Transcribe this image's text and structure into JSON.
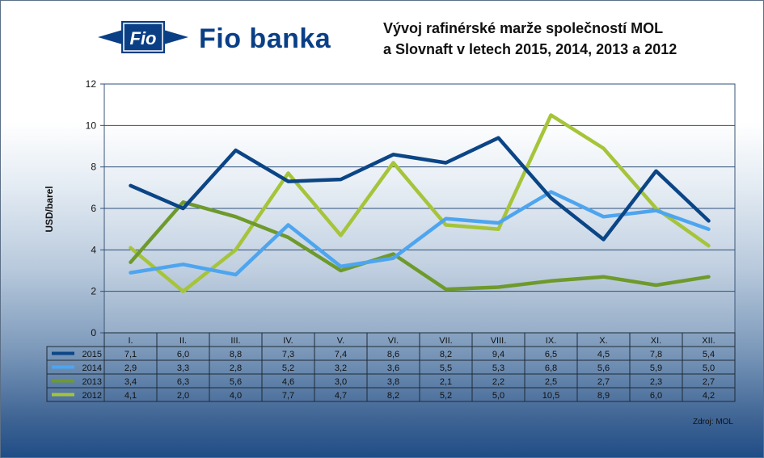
{
  "brand": {
    "logo_text": "Fio",
    "name": "Fio banka",
    "color": "#0a3f86"
  },
  "title_lines": [
    "Vývoj rafinérské marže společností MOL",
    "a Slovnaft v letech 2015, 2014, 2013 a 2012"
  ],
  "source": "Zdroj: MOL",
  "chart_data": {
    "type": "line",
    "title": "Vývoj rafinérské marže společností MOL a Slovnaft v letech 2015, 2014, 2013 a 2012",
    "xlabel": "",
    "ylabel": "USD/barel",
    "ylim": [
      0,
      12
    ],
    "yticks": [
      0,
      2,
      4,
      6,
      8,
      10,
      12
    ],
    "grid": true,
    "legend": "data-table",
    "categories": [
      "I.",
      "II.",
      "III.",
      "IV.",
      "V.",
      "VI.",
      "VII.",
      "VIII.",
      "IX.",
      "X.",
      "XI.",
      "XII."
    ],
    "series": [
      {
        "name": "2015",
        "color": "#0b4586",
        "values": [
          7.1,
          6.0,
          8.8,
          7.3,
          7.4,
          8.6,
          8.2,
          9.4,
          6.5,
          4.5,
          7.8,
          5.4
        ],
        "labels": [
          "7,1",
          "6,0",
          "8,8",
          "7,3",
          "7,4",
          "8,6",
          "8,2",
          "9,4",
          "6,5",
          "4,5",
          "7,8",
          "5,4"
        ]
      },
      {
        "name": "2014",
        "color": "#4ea5ef",
        "values": [
          2.9,
          3.3,
          2.8,
          5.2,
          3.2,
          3.6,
          5.5,
          5.3,
          6.8,
          5.6,
          5.9,
          5.0
        ],
        "labels": [
          "2,9",
          "3,3",
          "2,8",
          "5,2",
          "3,2",
          "3,6",
          "5,5",
          "5,3",
          "6,8",
          "5,6",
          "5,9",
          "5,0"
        ]
      },
      {
        "name": "2013",
        "color": "#6e9a2c",
        "values": [
          3.4,
          6.3,
          5.6,
          4.6,
          3.0,
          3.8,
          2.1,
          2.2,
          2.5,
          2.7,
          2.3,
          2.7
        ],
        "labels": [
          "3,4",
          "6,3",
          "5,6",
          "4,6",
          "3,0",
          "3,8",
          "2,1",
          "2,2",
          "2,5",
          "2,7",
          "2,3",
          "2,7"
        ]
      },
      {
        "name": "2012",
        "color": "#a6c43a",
        "values": [
          4.1,
          2.0,
          4.0,
          7.7,
          4.7,
          8.2,
          5.2,
          5.0,
          10.5,
          8.9,
          6.0,
          4.2
        ],
        "labels": [
          "4,1",
          "2,0",
          "4,0",
          "7,7",
          "4,7",
          "8,2",
          "5,2",
          "5,0",
          "10,5",
          "8,9",
          "6,0",
          "4,2"
        ]
      }
    ]
  }
}
